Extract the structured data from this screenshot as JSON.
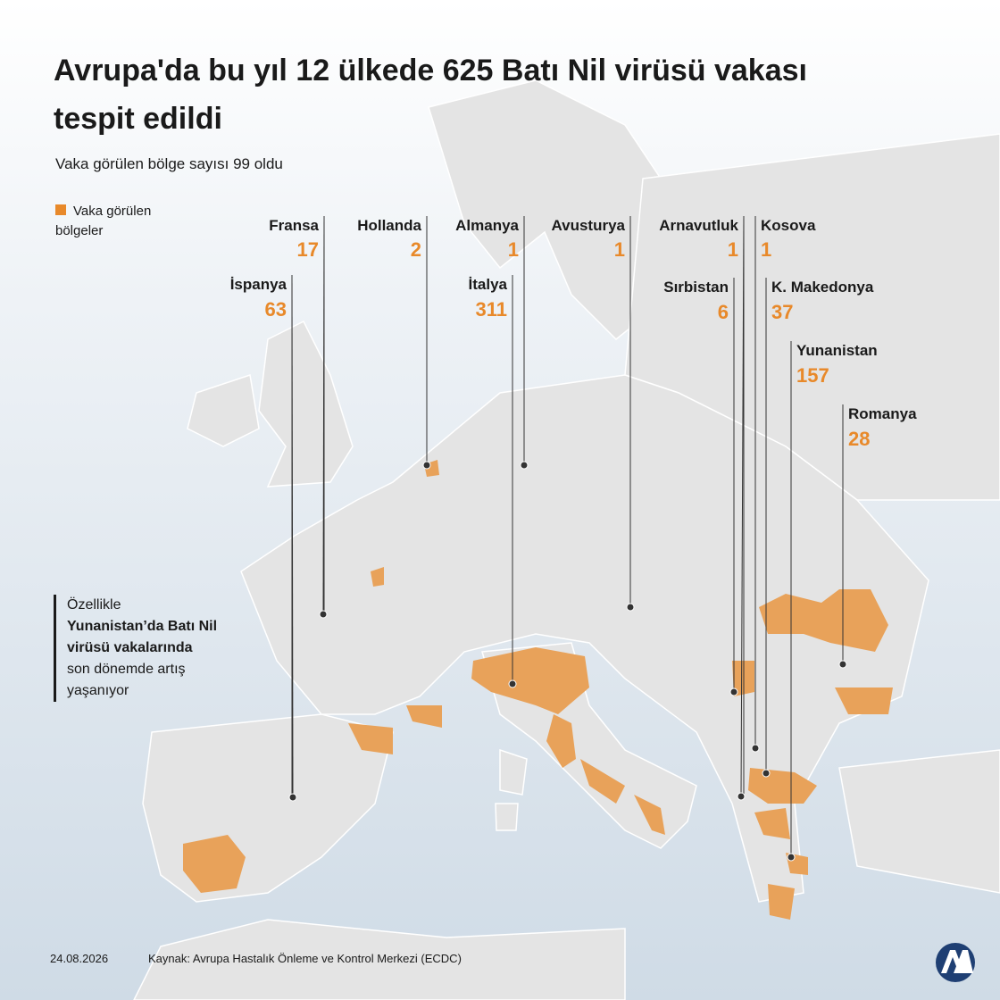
{
  "header": {
    "title": "Avrupa'da bu yıl 12 ülkede 625 Batı Nil virüsü vakası tespit edildi",
    "subtitle": "Vaka görülen bölge sayısı 99 oldu"
  },
  "legend": {
    "label": "Vaka görülen bölgeler"
  },
  "countries": [
    {
      "name": "Fransa",
      "cases": 17
    },
    {
      "name": "Hollanda",
      "cases": 2
    },
    {
      "name": "Almanya",
      "cases": 1
    },
    {
      "name": "Avusturya",
      "cases": 1
    },
    {
      "name": "Arnavutluk",
      "cases": 1
    },
    {
      "name": "Kosova",
      "cases": 1
    },
    {
      "name": "İspanya",
      "cases": 63
    },
    {
      "name": "İtalya",
      "cases": 311
    },
    {
      "name": "Sırbistan",
      "cases": 6
    },
    {
      "name": "K. Makedonya",
      "cases": 37
    },
    {
      "name": "Yunanistan",
      "cases": 157
    },
    {
      "name": "Romanya",
      "cases": 28
    }
  ],
  "note": {
    "lines": [
      "Özellikle",
      "Yunanistan’da Batı Nil",
      "virüsü vakalarında",
      "son dönemde artış",
      "yaşanıyor"
    ]
  },
  "footer": {
    "date": "24.08.2026",
    "source": "Kaynak: Avrupa Hastalık Önleme ve Kontrol Merkezi (ECDC)"
  }
}
